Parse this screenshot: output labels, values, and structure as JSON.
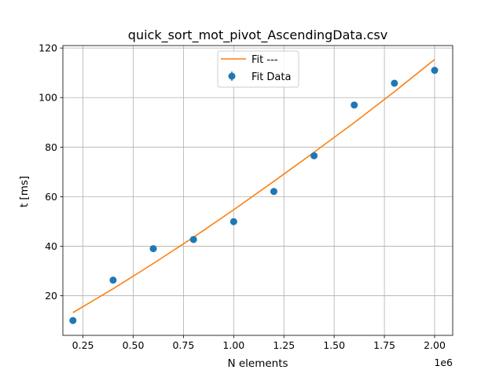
{
  "chart_data": {
    "type": "scatter",
    "title": "quick_sort_mot_pivot_AscendingData.csv",
    "xlabel": "N elements",
    "ylabel": "t [ms]",
    "x_offset_label": "1e6",
    "xlim": [
      0.15,
      2.09
    ],
    "ylim": [
      4,
      121
    ],
    "x_ticks": [
      0.25,
      0.5,
      0.75,
      1.0,
      1.25,
      1.5,
      1.75,
      2.0
    ],
    "x_tick_labels": [
      "0.25",
      "0.50",
      "0.75",
      "1.00",
      "1.25",
      "1.50",
      "1.75",
      "2.00"
    ],
    "y_ticks": [
      20,
      40,
      60,
      80,
      100,
      120
    ],
    "y_tick_labels": [
      "20",
      "40",
      "60",
      "80",
      "100",
      "120"
    ],
    "grid": true,
    "legend_position": "top-center",
    "series": [
      {
        "name": "Fit Data",
        "kind": "scatter-errorbar",
        "color": "#1f77b4",
        "x": [
          0.2,
          0.4,
          0.6,
          0.8,
          1.0,
          1.2,
          1.4,
          1.6,
          1.8,
          2.0
        ],
        "y": [
          10.0,
          26.3,
          39.0,
          42.7,
          49.9,
          62.1,
          76.5,
          97.0,
          105.8,
          111.0
        ]
      },
      {
        "name": "Fit ---",
        "kind": "line",
        "color": "#ff7f0e",
        "x": [
          0.2,
          0.4,
          0.6,
          0.8,
          1.0,
          1.2,
          1.4,
          1.6,
          1.8,
          2.0
        ],
        "y": [
          13.2,
          22.8,
          33.0,
          43.6,
          54.7,
          66.2,
          77.9,
          89.9,
          102.4,
          115.4
        ]
      }
    ]
  }
}
